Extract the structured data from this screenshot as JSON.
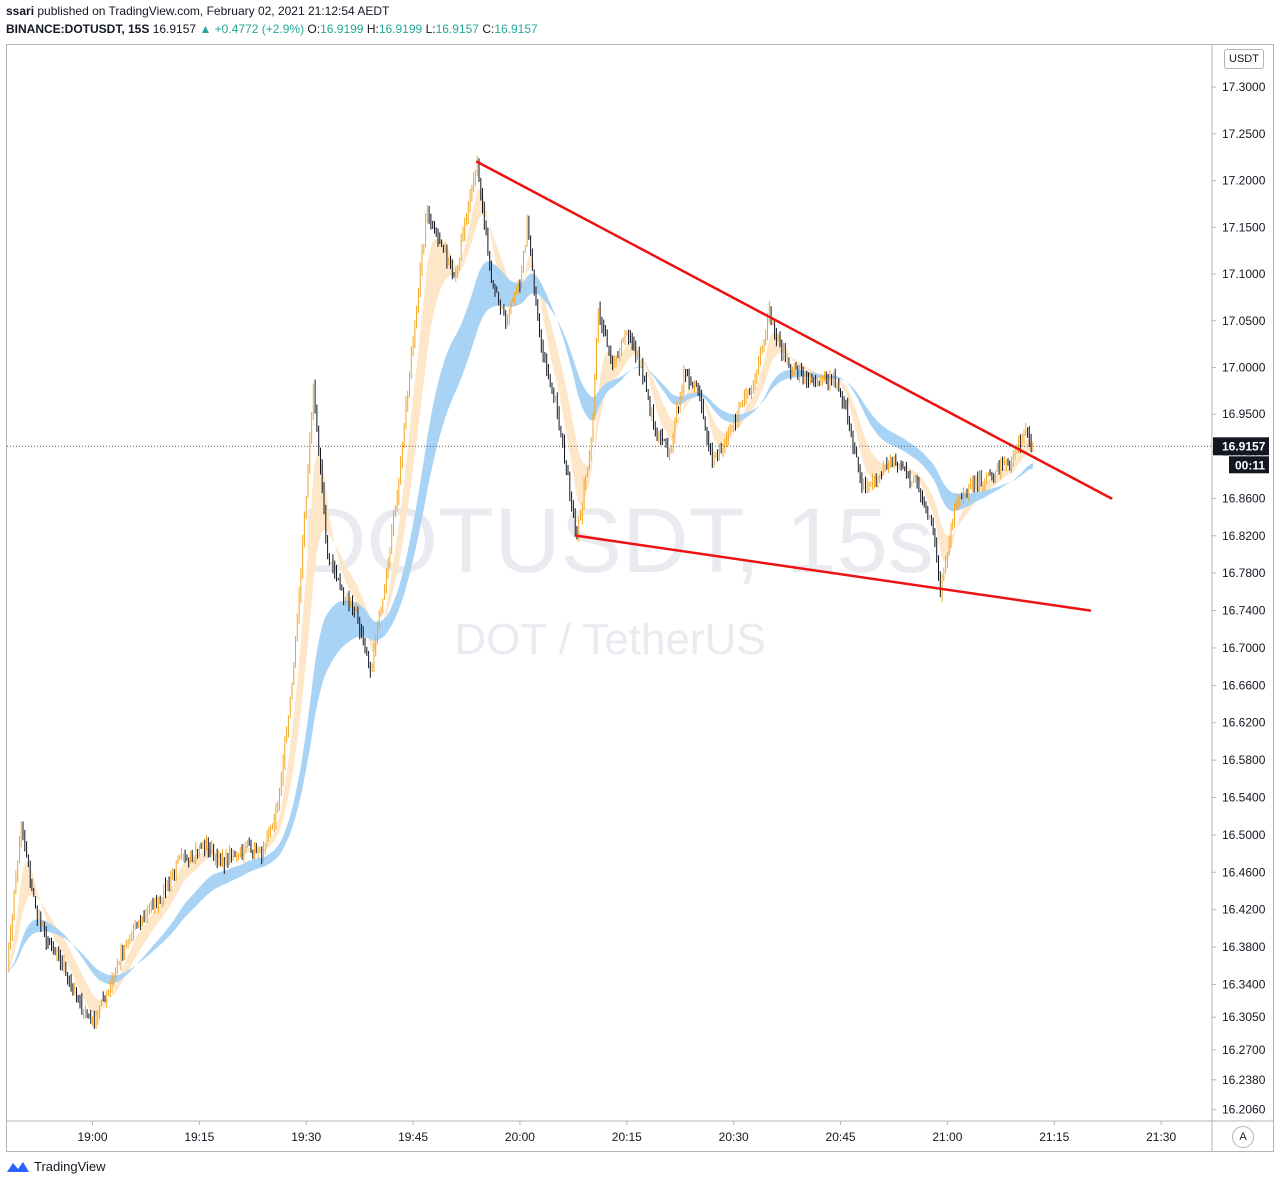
{
  "header": {
    "publisher": "ssari",
    "published_text": "published on TradingView.com, February 02, 2021 21:12:54 AEDT",
    "symbol": "BINANCE:DOTUSDT, 15S",
    "last": "16.9157",
    "change": "+0.4772 (+2.9%)",
    "o_label": "O:",
    "o_value": "16.9199",
    "h_label": "H:",
    "h_value": "16.9199",
    "l_label": "L:",
    "l_value": "16.9157",
    "c_label": "C:",
    "c_value": "16.9157"
  },
  "watermark": {
    "title": "DOTUSDT, 15s",
    "subtitle": "DOT / TetherUS"
  },
  "axis": {
    "currency": "USDT",
    "price_badge": "16.9157",
    "countdown_badge": "00:11",
    "auto_label": "A"
  },
  "footer": {
    "brand": "TradingView"
  },
  "colors": {
    "up_tick": "#f6a623",
    "down_tick": "#131722",
    "ema_fast": "#fde7c8",
    "ema_slow": "#a9d3f5",
    "trendline": "#ee1111",
    "price_badge_bg": "#131722"
  },
  "chart_data": {
    "type": "line",
    "x_unit": "time of day (HH:MM)",
    "y_unit": "USDT",
    "xlim": [
      "18:48",
      "21:37"
    ],
    "ylim": [
      16.195,
      17.345
    ],
    "log_scale": false,
    "grid": false,
    "price_ticks": [
      "17.3000",
      "17.2500",
      "17.2000",
      "17.1500",
      "17.1000",
      "17.0500",
      "17.0000",
      "16.9500",
      "16.9100",
      "16.8600",
      "16.8200",
      "16.7800",
      "16.7400",
      "16.7000",
      "16.6600",
      "16.6200",
      "16.5800",
      "16.5400",
      "16.5000",
      "16.4600",
      "16.4200",
      "16.3800",
      "16.3400",
      "16.3050",
      "16.2700",
      "16.2380",
      "16.2060"
    ],
    "time_ticks": [
      "19:00",
      "19:15",
      "19:30",
      "19:45",
      "20:00",
      "20:15",
      "20:30",
      "20:45",
      "21:00",
      "21:15",
      "21:30"
    ],
    "price_series": {
      "name": "DOTUSDT",
      "points": [
        [
          "18:48",
          16.36
        ],
        [
          "18:50",
          16.51
        ],
        [
          "18:52",
          16.42
        ],
        [
          "18:54",
          16.38
        ],
        [
          "18:56",
          16.36
        ],
        [
          "18:58",
          16.32
        ],
        [
          "19:00",
          16.3
        ],
        [
          "19:02",
          16.33
        ],
        [
          "19:04",
          16.37
        ],
        [
          "19:06",
          16.4
        ],
        [
          "19:08",
          16.42
        ],
        [
          "19:10",
          16.44
        ],
        [
          "19:12",
          16.47
        ],
        [
          "19:14",
          16.48
        ],
        [
          "19:16",
          16.49
        ],
        [
          "19:18",
          16.47
        ],
        [
          "19:20",
          16.48
        ],
        [
          "19:22",
          16.49
        ],
        [
          "19:24",
          16.48
        ],
        [
          "19:26",
          16.53
        ],
        [
          "19:28",
          16.66
        ],
        [
          "19:30",
          16.86
        ],
        [
          "19:31",
          16.98
        ],
        [
          "19:33",
          16.8
        ],
        [
          "19:35",
          16.76
        ],
        [
          "19:37",
          16.74
        ],
        [
          "19:39",
          16.67
        ],
        [
          "19:41",
          16.77
        ],
        [
          "19:43",
          16.88
        ],
        [
          "19:45",
          17.03
        ],
        [
          "19:47",
          17.17
        ],
        [
          "19:49",
          17.13
        ],
        [
          "19:51",
          17.1
        ],
        [
          "19:53",
          17.18
        ],
        [
          "19:54",
          17.22
        ],
        [
          "19:56",
          17.09
        ],
        [
          "19:58",
          17.05
        ],
        [
          "20:00",
          17.09
        ],
        [
          "20:01",
          17.15
        ],
        [
          "20:03",
          17.02
        ],
        [
          "20:05",
          16.96
        ],
        [
          "20:07",
          16.87
        ],
        [
          "20:08",
          16.82
        ],
        [
          "20:10",
          16.92
        ],
        [
          "20:11",
          17.06
        ],
        [
          "20:13",
          17.0
        ],
        [
          "20:15",
          17.04
        ],
        [
          "20:17",
          17.0
        ],
        [
          "20:19",
          16.93
        ],
        [
          "20:21",
          16.91
        ],
        [
          "20:23",
          16.99
        ],
        [
          "20:25",
          16.98
        ],
        [
          "20:27",
          16.9
        ],
        [
          "20:29",
          16.92
        ],
        [
          "20:31",
          16.96
        ],
        [
          "20:33",
          16.99
        ],
        [
          "20:35",
          17.06
        ],
        [
          "20:36",
          17.03
        ],
        [
          "20:38",
          17.0
        ],
        [
          "20:40",
          16.99
        ],
        [
          "20:42",
          16.98
        ],
        [
          "20:44",
          16.99
        ],
        [
          "20:46",
          16.95
        ],
        [
          "20:48",
          16.87
        ],
        [
          "20:50",
          16.88
        ],
        [
          "20:52",
          16.9
        ],
        [
          "20:54",
          16.89
        ],
        [
          "20:56",
          16.87
        ],
        [
          "20:58",
          16.83
        ],
        [
          "20:59",
          16.76
        ],
        [
          "21:01",
          16.85
        ],
        [
          "21:03",
          16.87
        ],
        [
          "21:05",
          16.88
        ],
        [
          "21:07",
          16.89
        ],
        [
          "21:09",
          16.9
        ],
        [
          "21:10",
          16.92
        ],
        [
          "21:11",
          16.93
        ],
        [
          "21:12",
          16.9157
        ]
      ]
    },
    "trendlines": [
      {
        "from": [
          "19:54",
          17.22
        ],
        "to": [
          "21:23",
          16.86
        ]
      },
      {
        "from": [
          "20:08",
          16.82
        ],
        "to": [
          "21:20",
          16.74
        ]
      }
    ],
    "last_price": 16.9157,
    "countdown": "00:11"
  }
}
